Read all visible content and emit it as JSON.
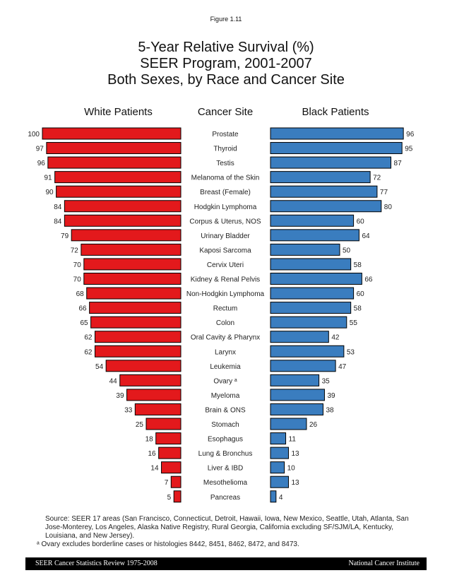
{
  "figure_label": "Figure 1.11",
  "chart_data": {
    "type": "bar",
    "title": [
      "5-Year Relative Survival (%)",
      "SEER Program, 2001-2007",
      "Both Sexes, by Race and Cancer Site"
    ],
    "orientation": "horizontal-butterfly",
    "column_headers": {
      "left": "White Patients",
      "center": "Cancer Site",
      "right": "Black Patients"
    },
    "categories": [
      "Prostate",
      "Thyroid",
      "Testis",
      "Melanoma of the Skin",
      "Breast (Female)",
      "Hodgkin Lymphoma",
      "Corpus & Uterus, NOS",
      "Urinary Bladder",
      "Kaposi Sarcoma",
      "Cervix Uteri",
      "Kidney & Renal Pelvis",
      "Non-Hodgkin Lymphoma",
      "Rectum",
      "Colon",
      "Oral Cavity & Pharynx",
      "Larynx",
      "Leukemia",
      "Ovary ᵃ",
      "Myeloma",
      "Brain & ONS",
      "Stomach",
      "Esophagus",
      "Lung & Bronchus",
      "Liver & IBD",
      "Mesothelioma",
      "Pancreas"
    ],
    "series": [
      {
        "name": "White Patients",
        "color": "#e3191c",
        "values": [
          100,
          97,
          96,
          91,
          90,
          84,
          84,
          79,
          72,
          70,
          70,
          68,
          66,
          65,
          62,
          62,
          54,
          44,
          39,
          33,
          25,
          18,
          16,
          14,
          7,
          5
        ]
      },
      {
        "name": "Black Patients",
        "color": "#3a7dbf",
        "values": [
          96,
          95,
          87,
          72,
          77,
          80,
          60,
          64,
          50,
          58,
          66,
          60,
          58,
          55,
          42,
          53,
          47,
          35,
          39,
          38,
          26,
          11,
          13,
          10,
          13,
          4
        ]
      }
    ],
    "xlim": [
      0,
      100
    ],
    "grid": false,
    "data_labels": true
  },
  "notes": {
    "source": "Source: SEER 17 areas (San Francisco, Connecticut, Detroit, Hawaii, Iowa, New Mexico, Seattle, Utah, Atlanta, San Jose-Monterey, Los Angeles, Alaska Native Registry, Rural Georgia, California excluding SF/SJM/LA, Kentucky, Louisiana, and New Jersey).",
    "footnote": "ᵃ Ovary excludes borderline cases or histologies 8442, 8451, 8462, 8472, and 8473."
  },
  "footer": {
    "left": "SEER Cancer Statistics Review 1975-2008",
    "right": "National Cancer Institute"
  }
}
